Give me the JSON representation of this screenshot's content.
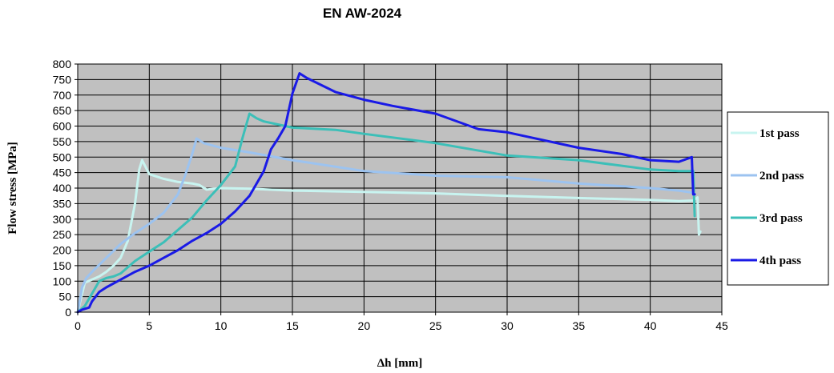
{
  "chart_data": {
    "type": "line",
    "title": "EN AW-2024",
    "xlabel": "Δh [mm]",
    "ylabel": "Flow stress [MPa]",
    "xlim": [
      0,
      45
    ],
    "ylim": [
      0,
      800
    ],
    "xticks": [
      0,
      5,
      10,
      15,
      20,
      25,
      30,
      35,
      40,
      45
    ],
    "yticks": [
      0,
      50,
      100,
      150,
      200,
      250,
      300,
      350,
      400,
      450,
      500,
      550,
      600,
      650,
      700,
      750,
      800
    ],
    "grid": true,
    "legend_position": "right",
    "series": [
      {
        "name": "1st pass",
        "color": "#c8f4f0",
        "x": [
          0,
          0.2,
          0.5,
          1.0,
          1.5,
          2.0,
          2.5,
          3.0,
          3.5,
          4.0,
          4.3,
          4.5,
          5.0,
          6.0,
          7.0,
          8.0,
          8.5,
          9.0,
          10.0,
          12.0,
          15.0,
          20.0,
          25.0,
          30.0,
          35.0,
          40.0,
          42.0,
          43.0,
          43.3,
          43.4,
          43.5
        ],
        "y": [
          0,
          40,
          95,
          105,
          115,
          130,
          150,
          175,
          230,
          350,
          460,
          490,
          445,
          430,
          420,
          415,
          410,
          395,
          400,
          398,
          392,
          388,
          383,
          375,
          368,
          362,
          358,
          360,
          370,
          250,
          260
        ]
      },
      {
        "name": "2nd pass",
        "color": "#9cc3f0",
        "x": [
          0,
          0.3,
          0.6,
          1.0,
          2.0,
          3.0,
          4.0,
          5.0,
          6.0,
          7.0,
          7.5,
          8.0,
          8.3,
          8.8,
          10.0,
          12.0,
          15.0,
          20.0,
          25.0,
          30.0,
          35.0,
          40.0,
          42.0,
          43.0
        ],
        "y": [
          0,
          80,
          110,
          130,
          175,
          220,
          255,
          285,
          320,
          380,
          440,
          510,
          560,
          545,
          530,
          515,
          490,
          455,
          440,
          435,
          415,
          400,
          392,
          385
        ]
      },
      {
        "name": "3rd pass",
        "color": "#3cbfb8",
        "x": [
          0,
          0.5,
          1.0,
          1.5,
          2.0,
          2.5,
          3.0,
          4.0,
          5.0,
          6.0,
          7.0,
          8.0,
          9.0,
          10.0,
          11.0,
          11.5,
          12.0,
          12.5,
          13.0,
          15.0,
          18.0,
          20.0,
          25.0,
          30.0,
          35.0,
          40.0,
          42.0,
          43.0,
          43.1
        ],
        "y": [
          0,
          20,
          60,
          100,
          110,
          115,
          125,
          165,
          195,
          225,
          265,
          305,
          360,
          410,
          470,
          560,
          640,
          625,
          615,
          595,
          588,
          575,
          545,
          505,
          490,
          460,
          455,
          455,
          310
        ]
      },
      {
        "name": "4th pass",
        "color": "#1a1ae6",
        "x": [
          0,
          0.3,
          0.8,
          1.0,
          1.5,
          2.0,
          3.0,
          4.0,
          5.0,
          6.0,
          7.0,
          8.0,
          9.0,
          10.0,
          11.0,
          12.0,
          13.0,
          13.5,
          14.0,
          14.5,
          15.0,
          15.5,
          16.0,
          18.0,
          20.0,
          22.0,
          25.0,
          28.0,
          30.0,
          35.0,
          38.0,
          40.0,
          42.0,
          42.9,
          43.0,
          43.1
        ],
        "y": [
          0,
          8,
          15,
          35,
          65,
          80,
          105,
          130,
          150,
          175,
          200,
          230,
          255,
          285,
          325,
          375,
          455,
          525,
          560,
          600,
          705,
          770,
          755,
          710,
          685,
          665,
          640,
          590,
          580,
          530,
          510,
          490,
          485,
          500,
          380,
          380
        ]
      }
    ]
  }
}
